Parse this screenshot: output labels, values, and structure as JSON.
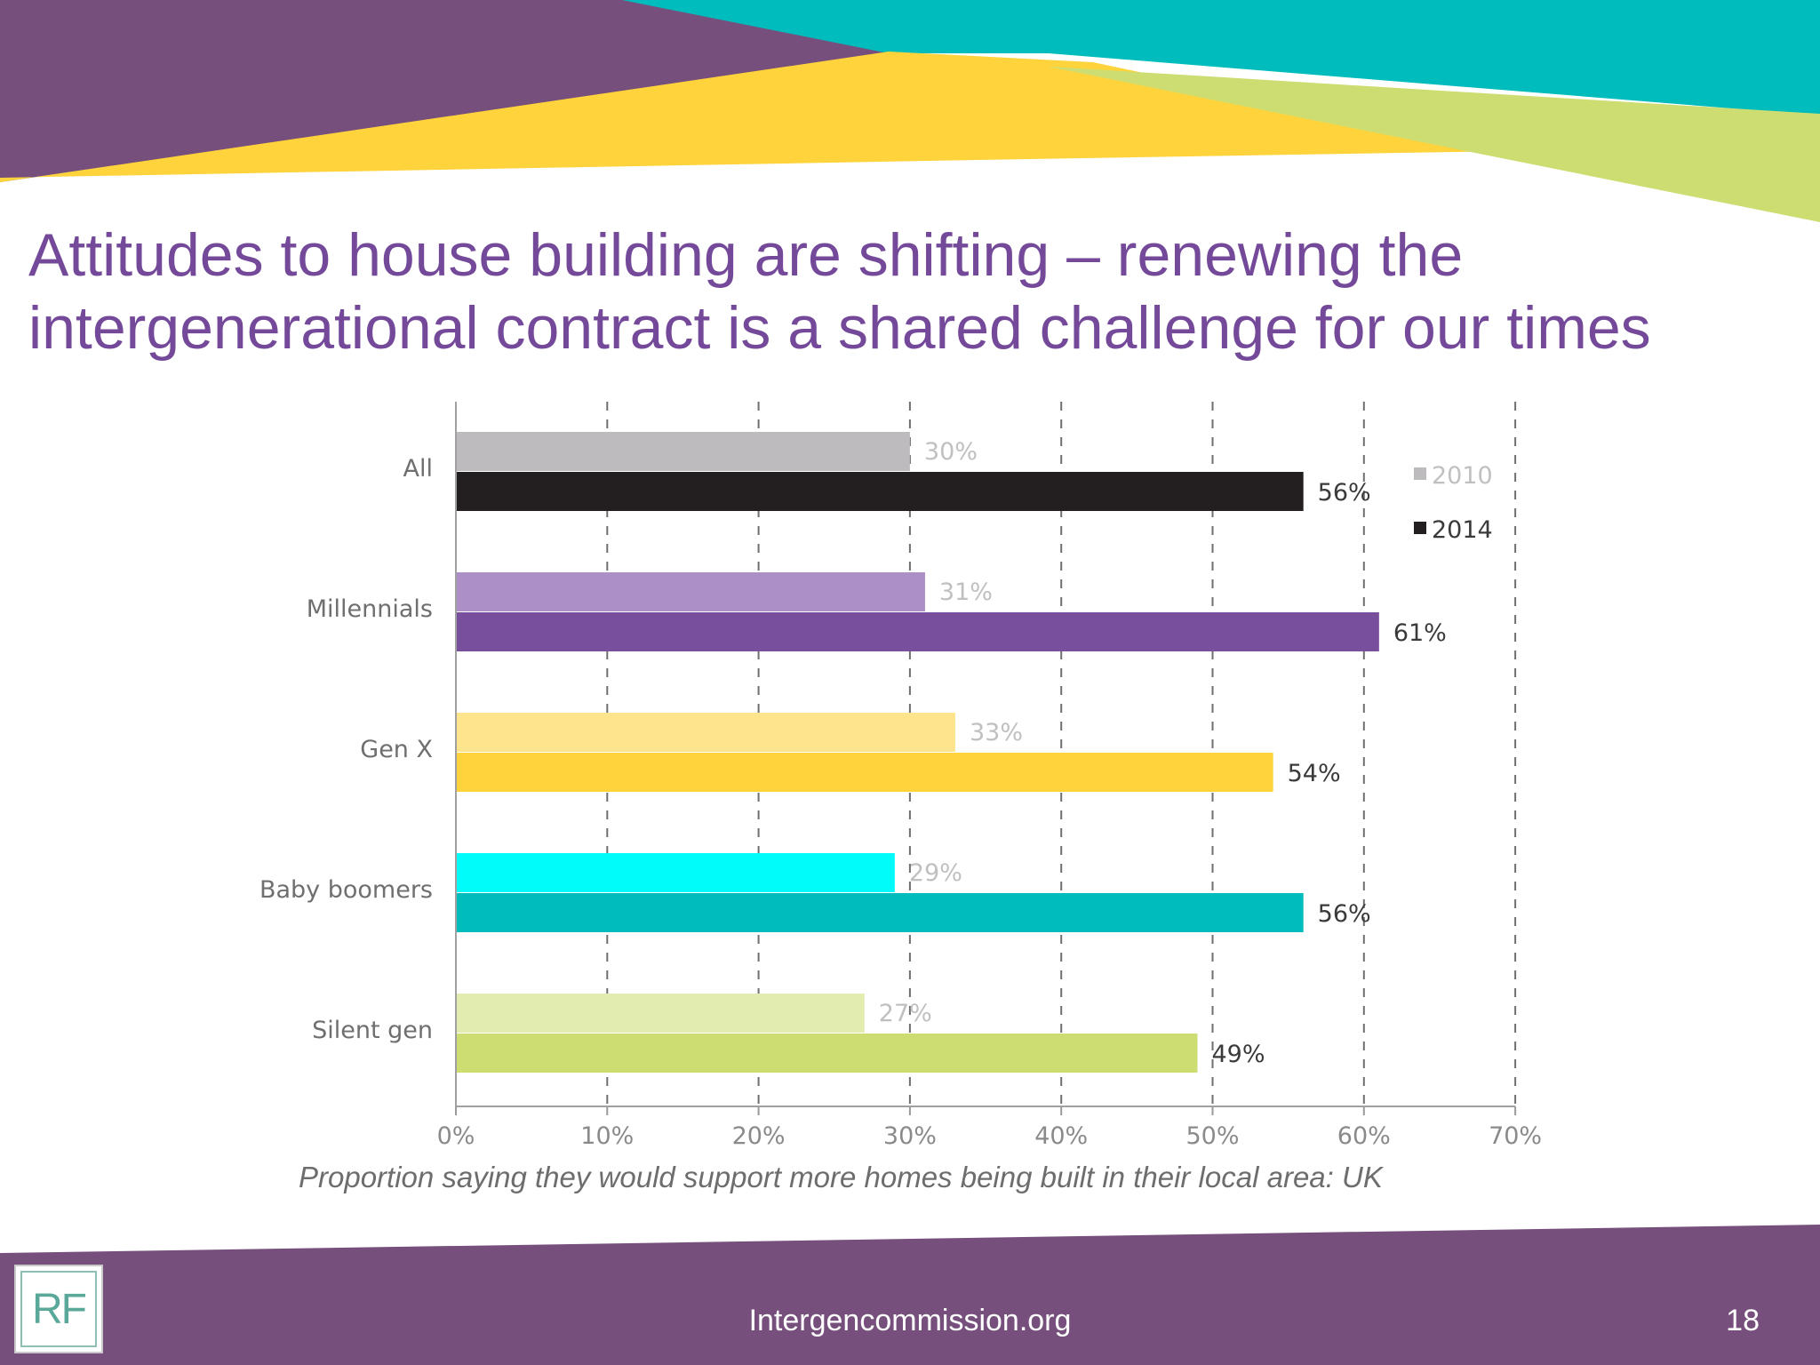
{
  "slide": {
    "title_line1": "Attitudes to house building are shifting – renewing the",
    "title_line2": "intergenerational contract is a shared challenge for our times",
    "caption": "Proportion saying they would support more homes being built in their local area: UK",
    "logo_text": "RF",
    "website": "Intergencommission.org",
    "page_number": "18"
  },
  "theme": {
    "purple": "#774f7d",
    "teal": "#00bcbc",
    "yellow": "#fed33c",
    "green": "#cddd72",
    "title_color": "#74499a"
  },
  "chart_data": {
    "type": "bar",
    "orientation": "horizontal",
    "categories": [
      "All",
      "Millennials",
      "Gen X",
      "Baby boomers",
      "Silent gen"
    ],
    "series": [
      {
        "name": "2010",
        "values": [
          30,
          31,
          33,
          29,
          27
        ],
        "labels": [
          "30%",
          "31%",
          "33%",
          "29%",
          "27%"
        ]
      },
      {
        "name": "2014",
        "values": [
          56,
          61,
          54,
          56,
          49
        ],
        "labels": [
          "56%",
          "61%",
          "54%",
          "56%",
          "49%"
        ]
      }
    ],
    "colors_2010": [
      "#bdbbbe",
      "#ac8fc7",
      "#fee48d",
      "#00fbfb",
      "#e2ebb0"
    ],
    "colors_2014": [
      "#231f20",
      "#774f9d",
      "#fed33c",
      "#00bcbc",
      "#cddd72"
    ],
    "legend_colors": {
      "2010": "#bdbbbe",
      "2014": "#231f20"
    },
    "xlim": [
      0,
      70
    ],
    "xticks": [
      "0%",
      "10%",
      "20%",
      "30%",
      "40%",
      "50%",
      "60%",
      "70%"
    ],
    "grid": "vertical dashed",
    "legend_position": "right"
  }
}
